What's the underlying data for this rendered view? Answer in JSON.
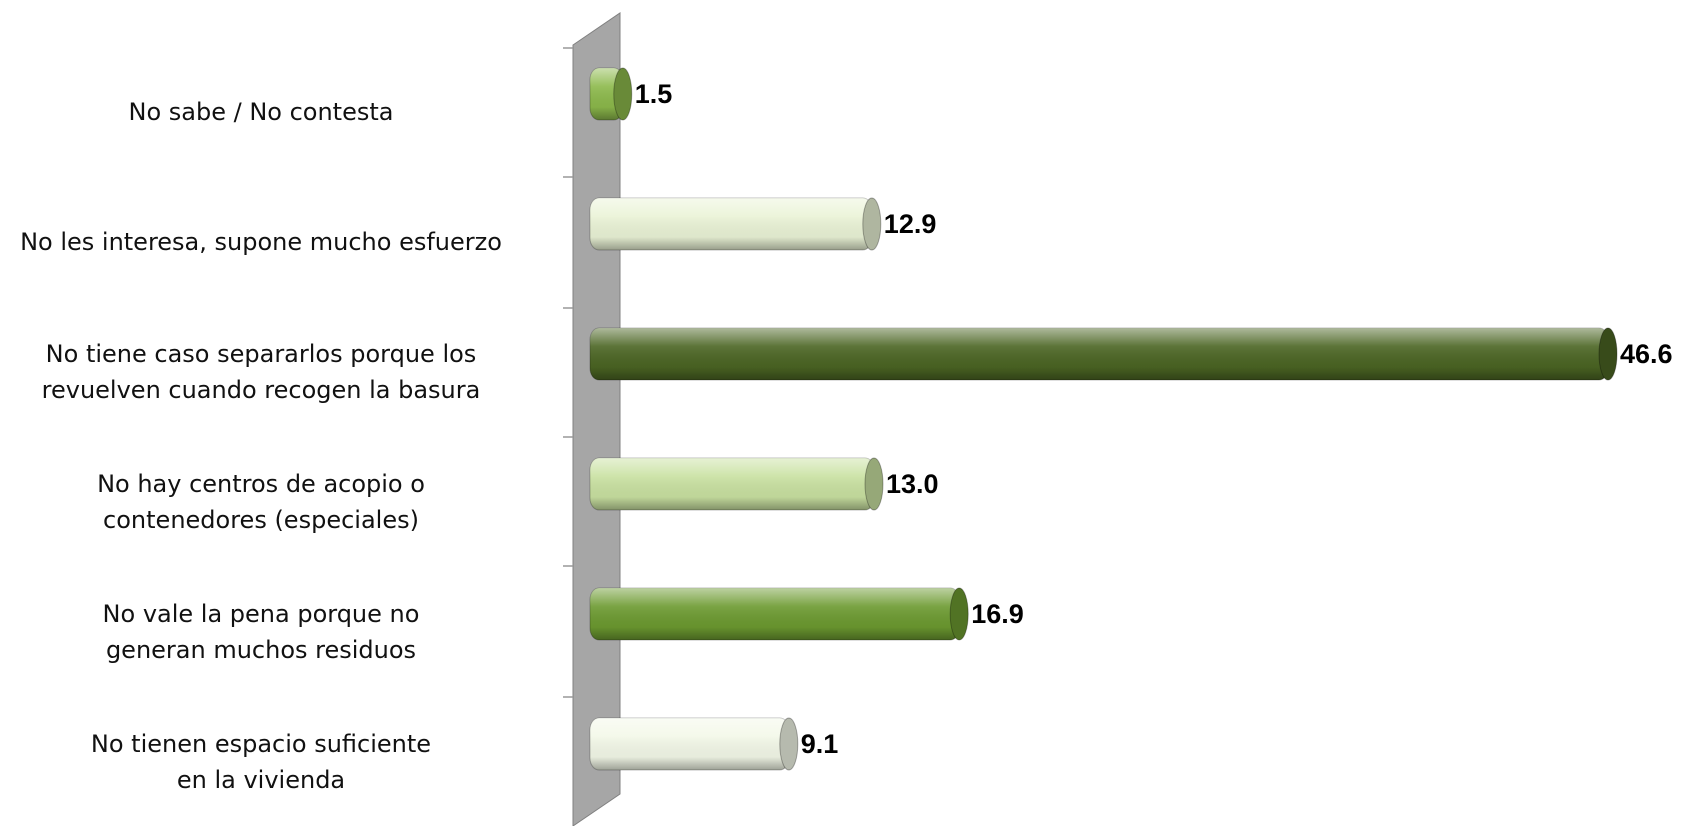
{
  "chart_data": {
    "type": "bar",
    "orientation": "horizontal",
    "categories": [
      "No sabe / No contesta",
      "No les interesa, supone mucho esfuerzo",
      "No tiene caso separarlos porque los\nrevuelven cuando recogen la basura",
      "No hay centros de acopio o\ncontenedores (especiales)",
      "No vale la pena porque no\ngeneran muchos residuos",
      "No tienen espacio suficiente\nen la vivienda"
    ],
    "values": [
      1.5,
      12.9,
      46.6,
      13.0,
      16.9,
      9.1
    ],
    "value_labels": [
      "1.5",
      "12.9",
      "46.6",
      "13.0",
      "16.9",
      "9.1"
    ],
    "colors": [
      "#8cb94b",
      "#eaf3d6",
      "#4b6523",
      "#c9e1a1",
      "#6c9a30",
      "#f3f8e8"
    ]
  }
}
